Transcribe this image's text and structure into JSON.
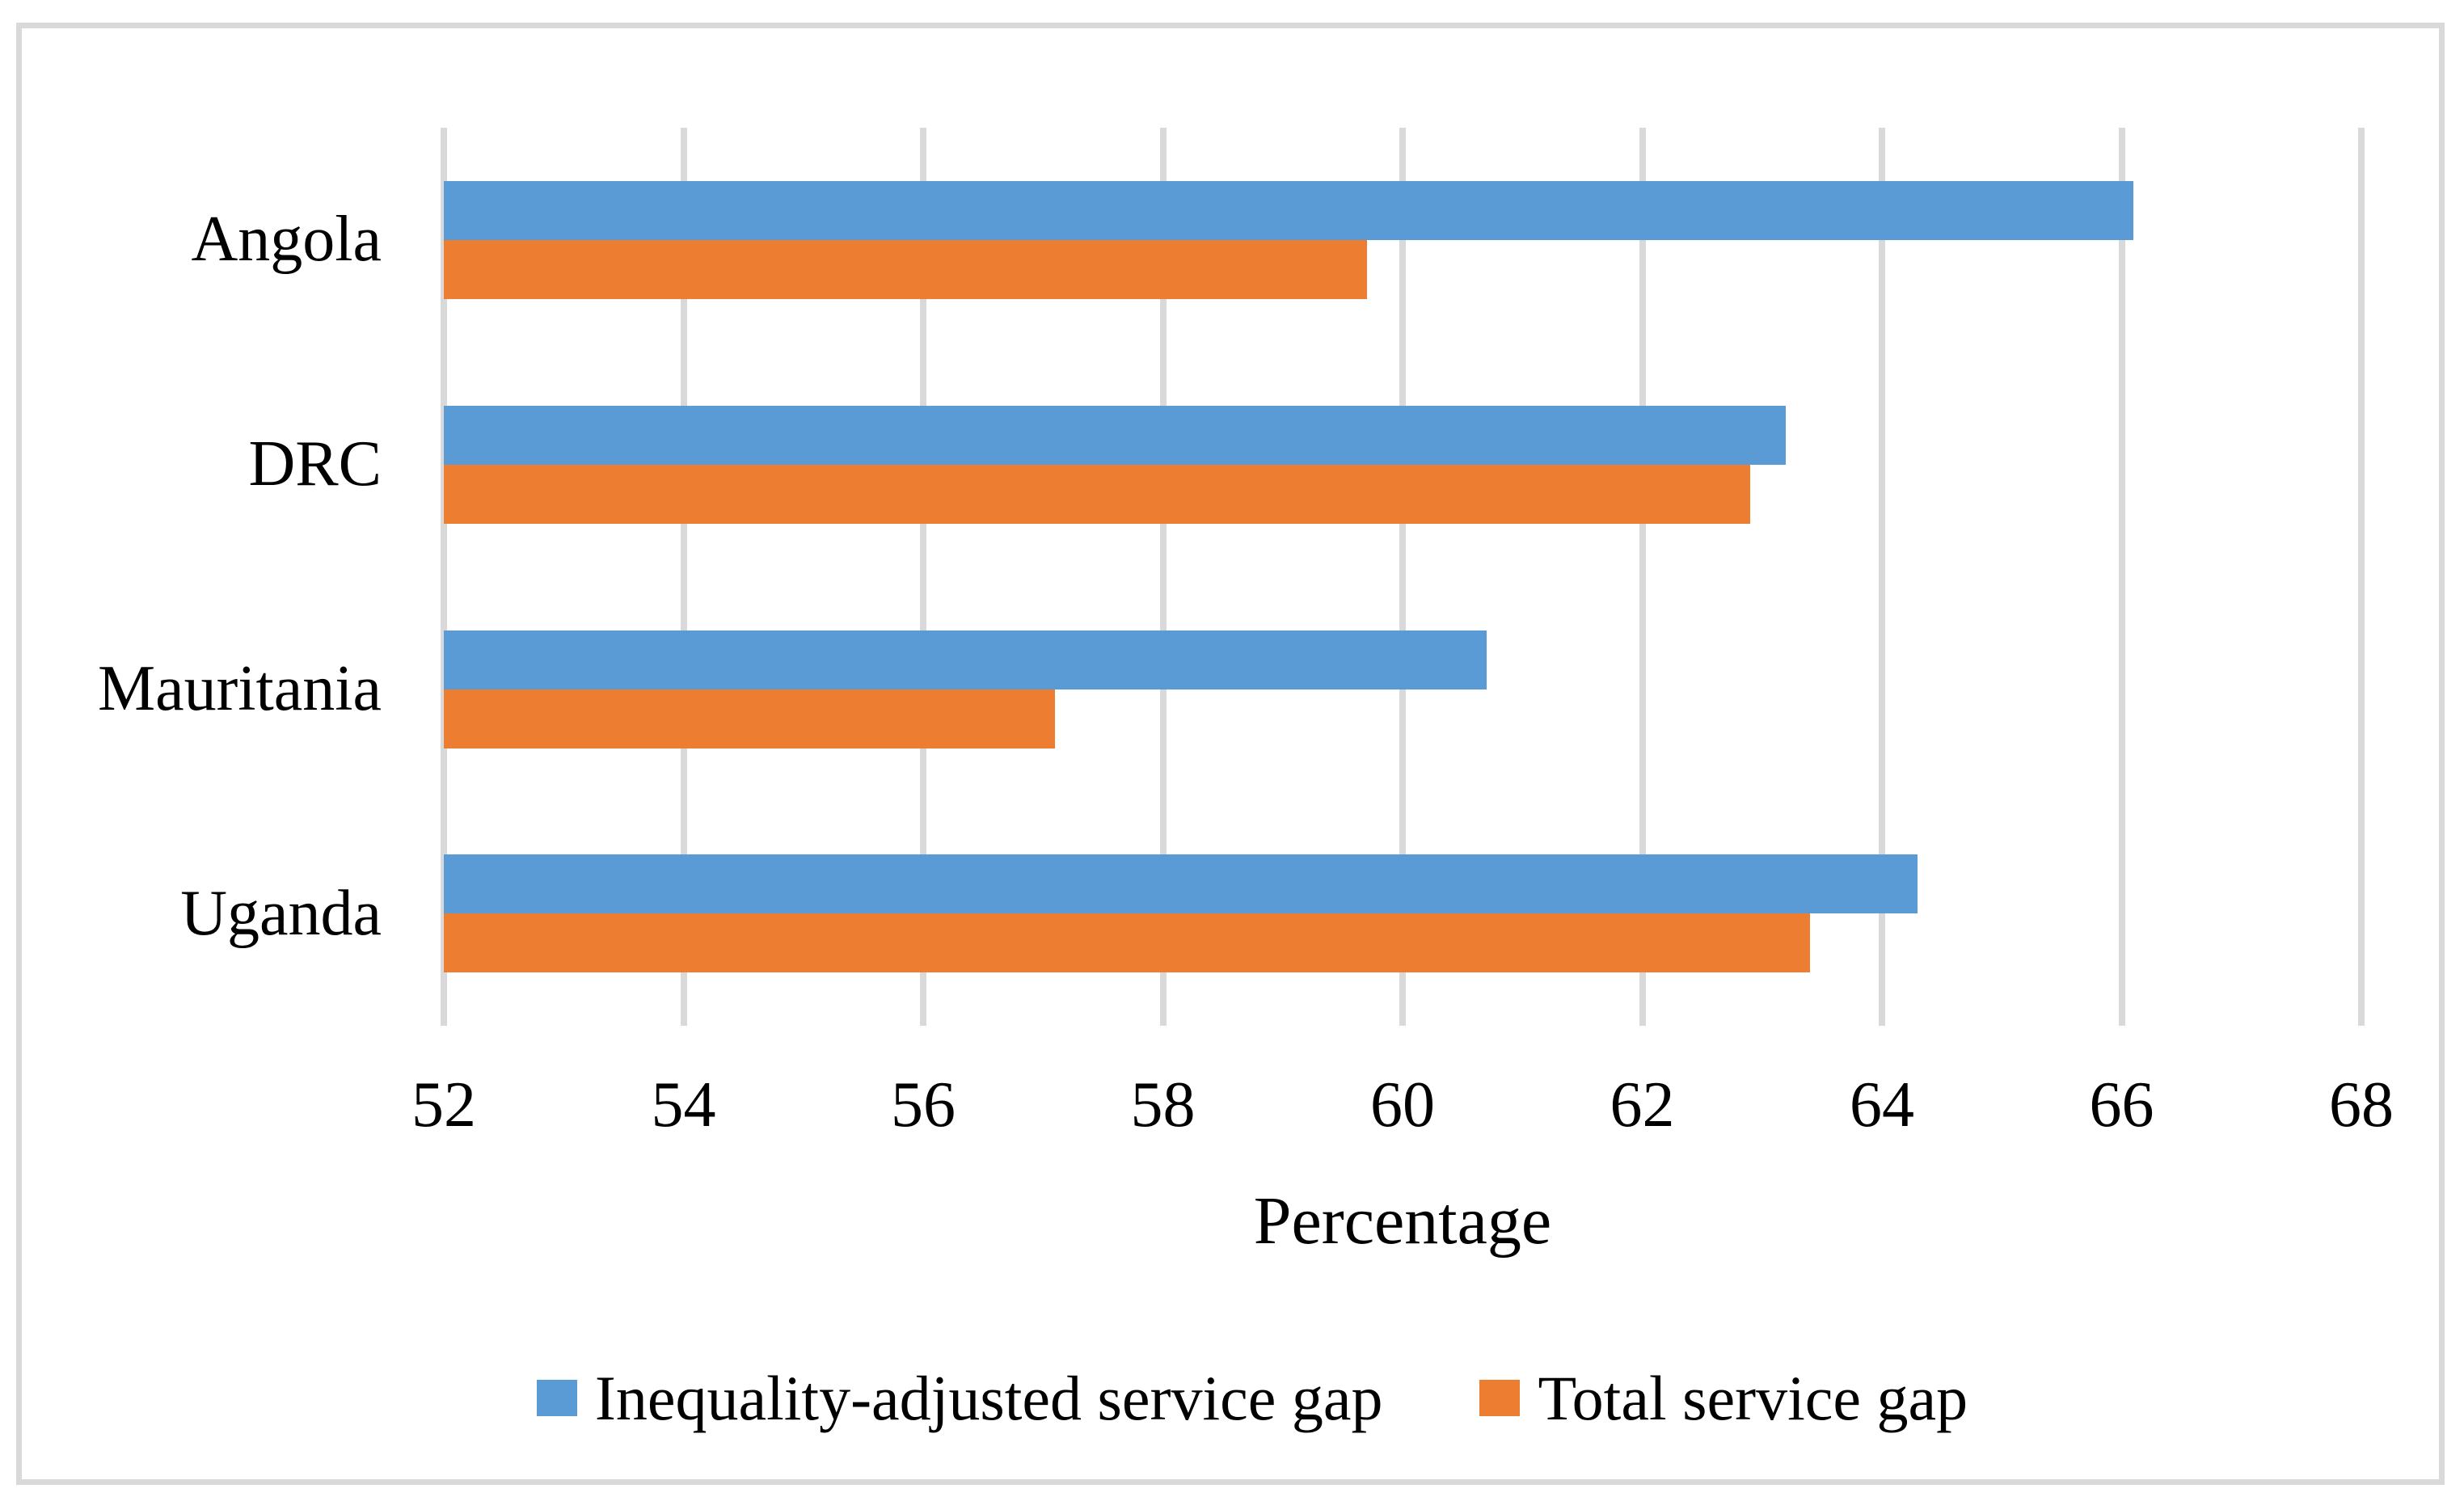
{
  "figure": {
    "background_color": "#ffffff",
    "border_color": "#d9d9d9",
    "text_color": "#000000"
  },
  "chart_data": {
    "type": "bar",
    "orientation": "horizontal",
    "title": "",
    "xlabel": "Percentage",
    "ylabel": "",
    "categories": [
      "Angola",
      "DRC",
      "Mauritania",
      "Uganda"
    ],
    "series": [
      {
        "name": "Inequality-adjusted service gap",
        "color": "#5b9bd5",
        "values": [
          66.1,
          63.2,
          60.7,
          64.3
        ]
      },
      {
        "name": "Total service gap",
        "color": "#ed7d31",
        "values": [
          59.7,
          62.9,
          57.1,
          63.4
        ]
      }
    ],
    "xlim": [
      52,
      68
    ],
    "xticks": [
      52,
      54,
      56,
      58,
      60,
      62,
      64,
      66,
      68
    ],
    "grid": "vertical",
    "gridline_color": "#d9d9d9",
    "legend_position": "bottom"
  }
}
